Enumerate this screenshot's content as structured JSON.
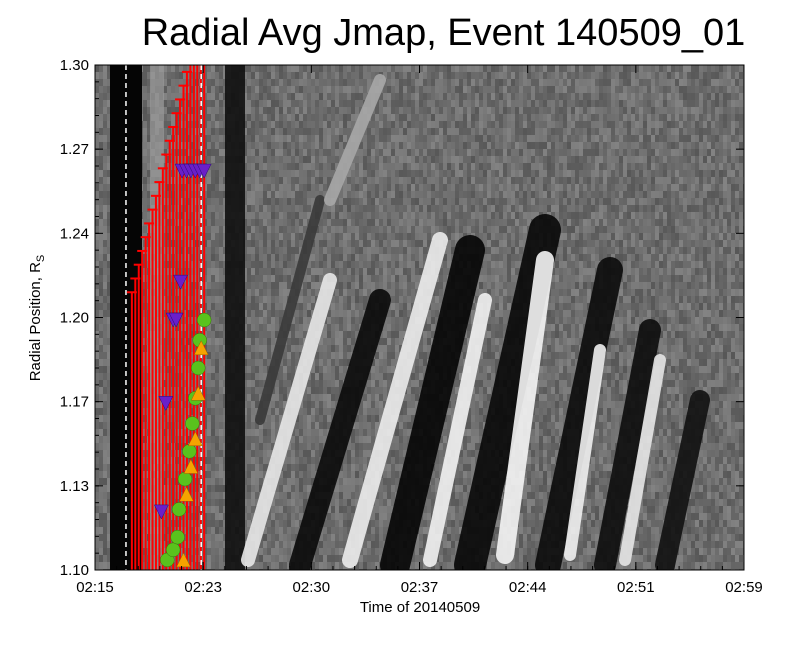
{
  "chart_data": {
    "type": "scatter",
    "title": "Radial Avg Jmap, Event 140509_01",
    "xlabel": "Time of 20140509",
    "ylabel_main": "Radial Position, R",
    "ylabel_sub": "S",
    "x_ticks": [
      "02:15",
      "02:23",
      "02:30",
      "02:37",
      "02:44",
      "02:51",
      "02:59"
    ],
    "y_ticks": [
      "1.10",
      "1.13",
      "1.17",
      "1.20",
      "1.24",
      "1.27",
      "1.30"
    ],
    "xlim": [
      "02:15",
      "02:59"
    ],
    "ylim": [
      1.1,
      1.3
    ],
    "background": "grayscale radial-average J-map image",
    "dashed_lines_x": [
      "02:17.1",
      "02:22.2"
    ],
    "series": [
      {
        "marker": "down-triangle",
        "color": "#6a1fc9",
        "points": [
          {
            "x": "02:19.5",
            "y": 1.123
          },
          {
            "x": "02:19.8",
            "y": 1.166
          },
          {
            "x": "02:20.3",
            "y": 1.199
          },
          {
            "x": "02:20.5",
            "y": 1.199
          },
          {
            "x": "02:20.8",
            "y": 1.214
          },
          {
            "x": "02:20.9",
            "y": 1.258
          },
          {
            "x": "02:21.2",
            "y": 1.258
          },
          {
            "x": "02:21.5",
            "y": 1.258
          },
          {
            "x": "02:21.8",
            "y": 1.258
          },
          {
            "x": "02:22.1",
            "y": 1.258
          },
          {
            "x": "02:22.4",
            "y": 1.258
          }
        ]
      },
      {
        "marker": "circle",
        "color": "#59c21d",
        "points": [
          {
            "x": "02:19.9",
            "y": 1.104
          },
          {
            "x": "02:20.3",
            "y": 1.108
          },
          {
            "x": "02:20.6",
            "y": 1.113
          },
          {
            "x": "02:20.7",
            "y": 1.124
          },
          {
            "x": "02:21.1",
            "y": 1.136
          },
          {
            "x": "02:21.4",
            "y": 1.147
          },
          {
            "x": "02:21.6",
            "y": 1.158
          },
          {
            "x": "02:21.8",
            "y": 1.168
          },
          {
            "x": "02:22.0",
            "y": 1.18
          },
          {
            "x": "02:22.1",
            "y": 1.191
          },
          {
            "x": "02:22.4",
            "y": 1.199
          }
        ]
      },
      {
        "marker": "up-triangle",
        "color": "#f5a300",
        "points": [
          {
            "x": "02:21.0",
            "y": 1.104
          },
          {
            "x": "02:21.2",
            "y": 1.13
          },
          {
            "x": "02:21.5",
            "y": 1.141
          },
          {
            "x": "02:21.8",
            "y": 1.152
          },
          {
            "x": "02:22.0",
            "y": 1.17
          },
          {
            "x": "02:22.2",
            "y": 1.188
          }
        ]
      }
    ],
    "error_bars": {
      "color": "#ff0000",
      "count": 22,
      "y_span": [
        1.1,
        1.3
      ]
    }
  }
}
